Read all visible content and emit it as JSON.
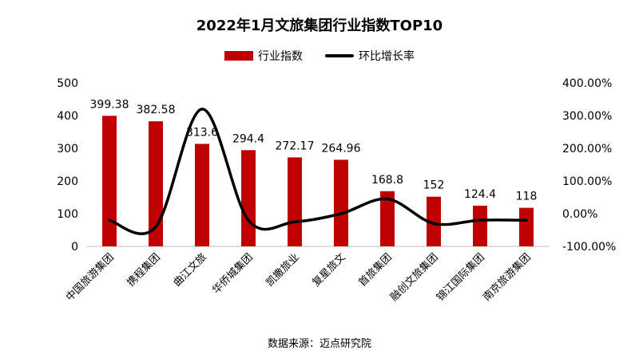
{
  "title": "2022年1月文旅集团行业指数TOP10",
  "source": "数据来源：迈点研究院",
  "colors": {
    "bar": "#c00000",
    "line": "#000000"
  },
  "chart_data": {
    "type": "bar",
    "categories": [
      "中国旅游集团",
      "携程集团",
      "曲江文旅",
      "华侨城集团",
      "凯撒旅业",
      "复星旅文",
      "首旅集团",
      "融创文旅集团",
      "锦江国际集团",
      "南京旅游集团"
    ],
    "series": [
      {
        "name": "行业指数",
        "type": "bar",
        "axis": "left",
        "values": [
          399.38,
          382.58,
          313.6,
          294.4,
          272.17,
          264.96,
          168.8,
          152,
          124.4,
          118
        ],
        "labels": [
          "399.38",
          "382.58",
          "313.6",
          "294.4",
          "272.17",
          "264.96",
          "168.8",
          "152",
          "124.4",
          "118"
        ]
      },
      {
        "name": "环比增长率",
        "type": "line",
        "axis": "right",
        "smooth": true,
        "values": [
          -20,
          -40,
          320,
          -20,
          -25,
          0,
          45,
          -30,
          -20,
          -20
        ]
      }
    ],
    "y_left": {
      "min": 0,
      "max": 500,
      "ticks": [
        "0",
        "100",
        "200",
        "300",
        "400",
        "500"
      ]
    },
    "y_right": {
      "min": -100,
      "max": 400,
      "ticks": [
        "-100.00%",
        "0.00%",
        "100.00%",
        "200.00%",
        "300.00%",
        "400.00%"
      ]
    },
    "legend": "top-center",
    "grid": false
  }
}
